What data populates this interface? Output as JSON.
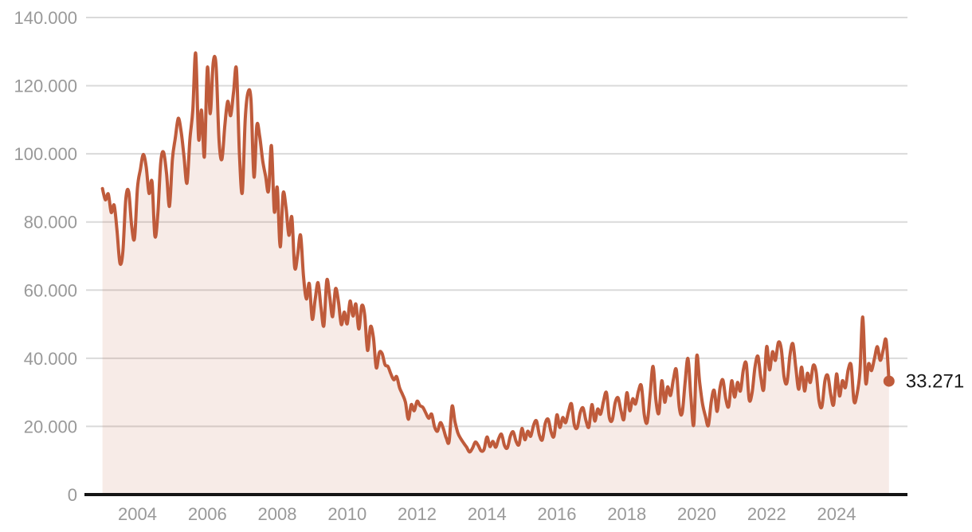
{
  "chart_data": {
    "type": "area",
    "title": "",
    "xlabel": "",
    "ylabel": "",
    "frequency": "monthly",
    "x_start": "2003-01",
    "x_end": "2025-07",
    "ylim": [
      0,
      140000
    ],
    "grid": "horizontal",
    "legend": "none",
    "last_value": 33271,
    "last_value_label": "33.271",
    "y_ticks": [
      {
        "value": 0,
        "label": "0"
      },
      {
        "value": 20000,
        "label": "20.000"
      },
      {
        "value": 40000,
        "label": "40.000"
      },
      {
        "value": 60000,
        "label": "60.000"
      },
      {
        "value": 80000,
        "label": "80.000"
      },
      {
        "value": 100000,
        "label": "100.000"
      },
      {
        "value": 120000,
        "label": "120.000"
      },
      {
        "value": 140000,
        "label": "140.000"
      }
    ],
    "x_ticks": [
      {
        "year": 2004,
        "label": "2004"
      },
      {
        "year": 2006,
        "label": "2006"
      },
      {
        "year": 2008,
        "label": "2008"
      },
      {
        "year": 2010,
        "label": "2010"
      },
      {
        "year": 2012,
        "label": "2012"
      },
      {
        "year": 2014,
        "label": "2014"
      },
      {
        "year": 2016,
        "label": "2016"
      },
      {
        "year": 2018,
        "label": "2018"
      },
      {
        "year": 2020,
        "label": "2020"
      },
      {
        "year": 2022,
        "label": "2022"
      },
      {
        "year": 2024,
        "label": "2024"
      }
    ],
    "colors": {
      "line": "#bf5b3b",
      "fill": "rgba(191,91,59,0.12)",
      "axis": "#141414",
      "grid": "#dadada",
      "tick_text": "#999999",
      "end_label_text": "#1a1a1a"
    },
    "values": [
      89800,
      86500,
      88200,
      82800,
      84900,
      77400,
      67900,
      71300,
      86700,
      88900,
      79000,
      75200,
      89900,
      95400,
      99800,
      96200,
      88400,
      91800,
      75900,
      82400,
      97600,
      100400,
      94100,
      84600,
      98400,
      104600,
      110400,
      106600,
      99100,
      91400,
      104100,
      112900,
      129500,
      104400,
      112800,
      99200,
      125300,
      111800,
      126700,
      125900,
      104100,
      98400,
      108300,
      115400,
      111200,
      118200,
      124800,
      100100,
      88600,
      110200,
      118100,
      115600,
      93200,
      108400,
      104900,
      98000,
      93400,
      89100,
      102400,
      83100,
      90100,
      72700,
      88300,
      84200,
      76100,
      81400,
      66600,
      70400,
      76100,
      64200,
      57400,
      61900,
      51500,
      57200,
      62200,
      55100,
      49600,
      62900,
      58100,
      52200,
      60400,
      56600,
      49900,
      53600,
      50100,
      56800,
      52400,
      55900,
      48600,
      55400,
      52800,
      42300,
      49300,
      46100,
      37200,
      41600,
      41400,
      38100,
      37600,
      35400,
      33700,
      34600,
      31300,
      29400,
      27100,
      22100,
      26400,
      24600,
      27400,
      26100,
      25600,
      23900,
      22400,
      23600,
      19900,
      18600,
      21100,
      19400,
      16600,
      15600,
      25900,
      21400,
      18100,
      16400,
      15100,
      13900,
      12500,
      13600,
      15400,
      14400,
      12800,
      13300,
      16900,
      14100,
      15600,
      13900,
      16400,
      17700,
      14400,
      13700,
      17100,
      18400,
      15600,
      14700,
      19400,
      16100,
      18600,
      17100,
      20400,
      21600,
      17400,
      16100,
      20900,
      22100,
      18400,
      17100,
      23400,
      19700,
      22600,
      21100,
      24400,
      26600,
      20400,
      19700,
      24100,
      25400,
      21600,
      19900,
      26400,
      21600,
      25100,
      23600,
      27400,
      29900,
      22600,
      21900,
      26900,
      28400,
      24600,
      22100,
      29900,
      24600,
      28100,
      26600,
      30400,
      31900,
      23400,
      21200,
      29400,
      37600,
      27600,
      23900,
      33400,
      27100,
      31600,
      29100,
      33900,
      36600,
      25600,
      23900,
      32900,
      39900,
      28600,
      20600,
      40600,
      32900,
      26600,
      22900,
      20300,
      27400,
      30600,
      24400,
      31400,
      33600,
      27900,
      25900,
      33400,
      28600,
      32900,
      30400,
      36600,
      38400,
      27900,
      29900,
      37400,
      40600,
      34400,
      30900,
      43400,
      36600,
      41900,
      39400,
      44600,
      42900,
      34400,
      32900,
      40900,
      44300,
      37400,
      30900,
      37400,
      30400,
      35600,
      32900,
      37900,
      35900,
      27400,
      25900,
      33400,
      34900,
      29400,
      26400,
      35400,
      28900,
      33400,
      31400,
      36600,
      37900,
      27400,
      29400,
      35900,
      52100,
      32900,
      38400,
      36400,
      39900,
      43400,
      39400,
      42400,
      45300,
      33271
    ]
  }
}
